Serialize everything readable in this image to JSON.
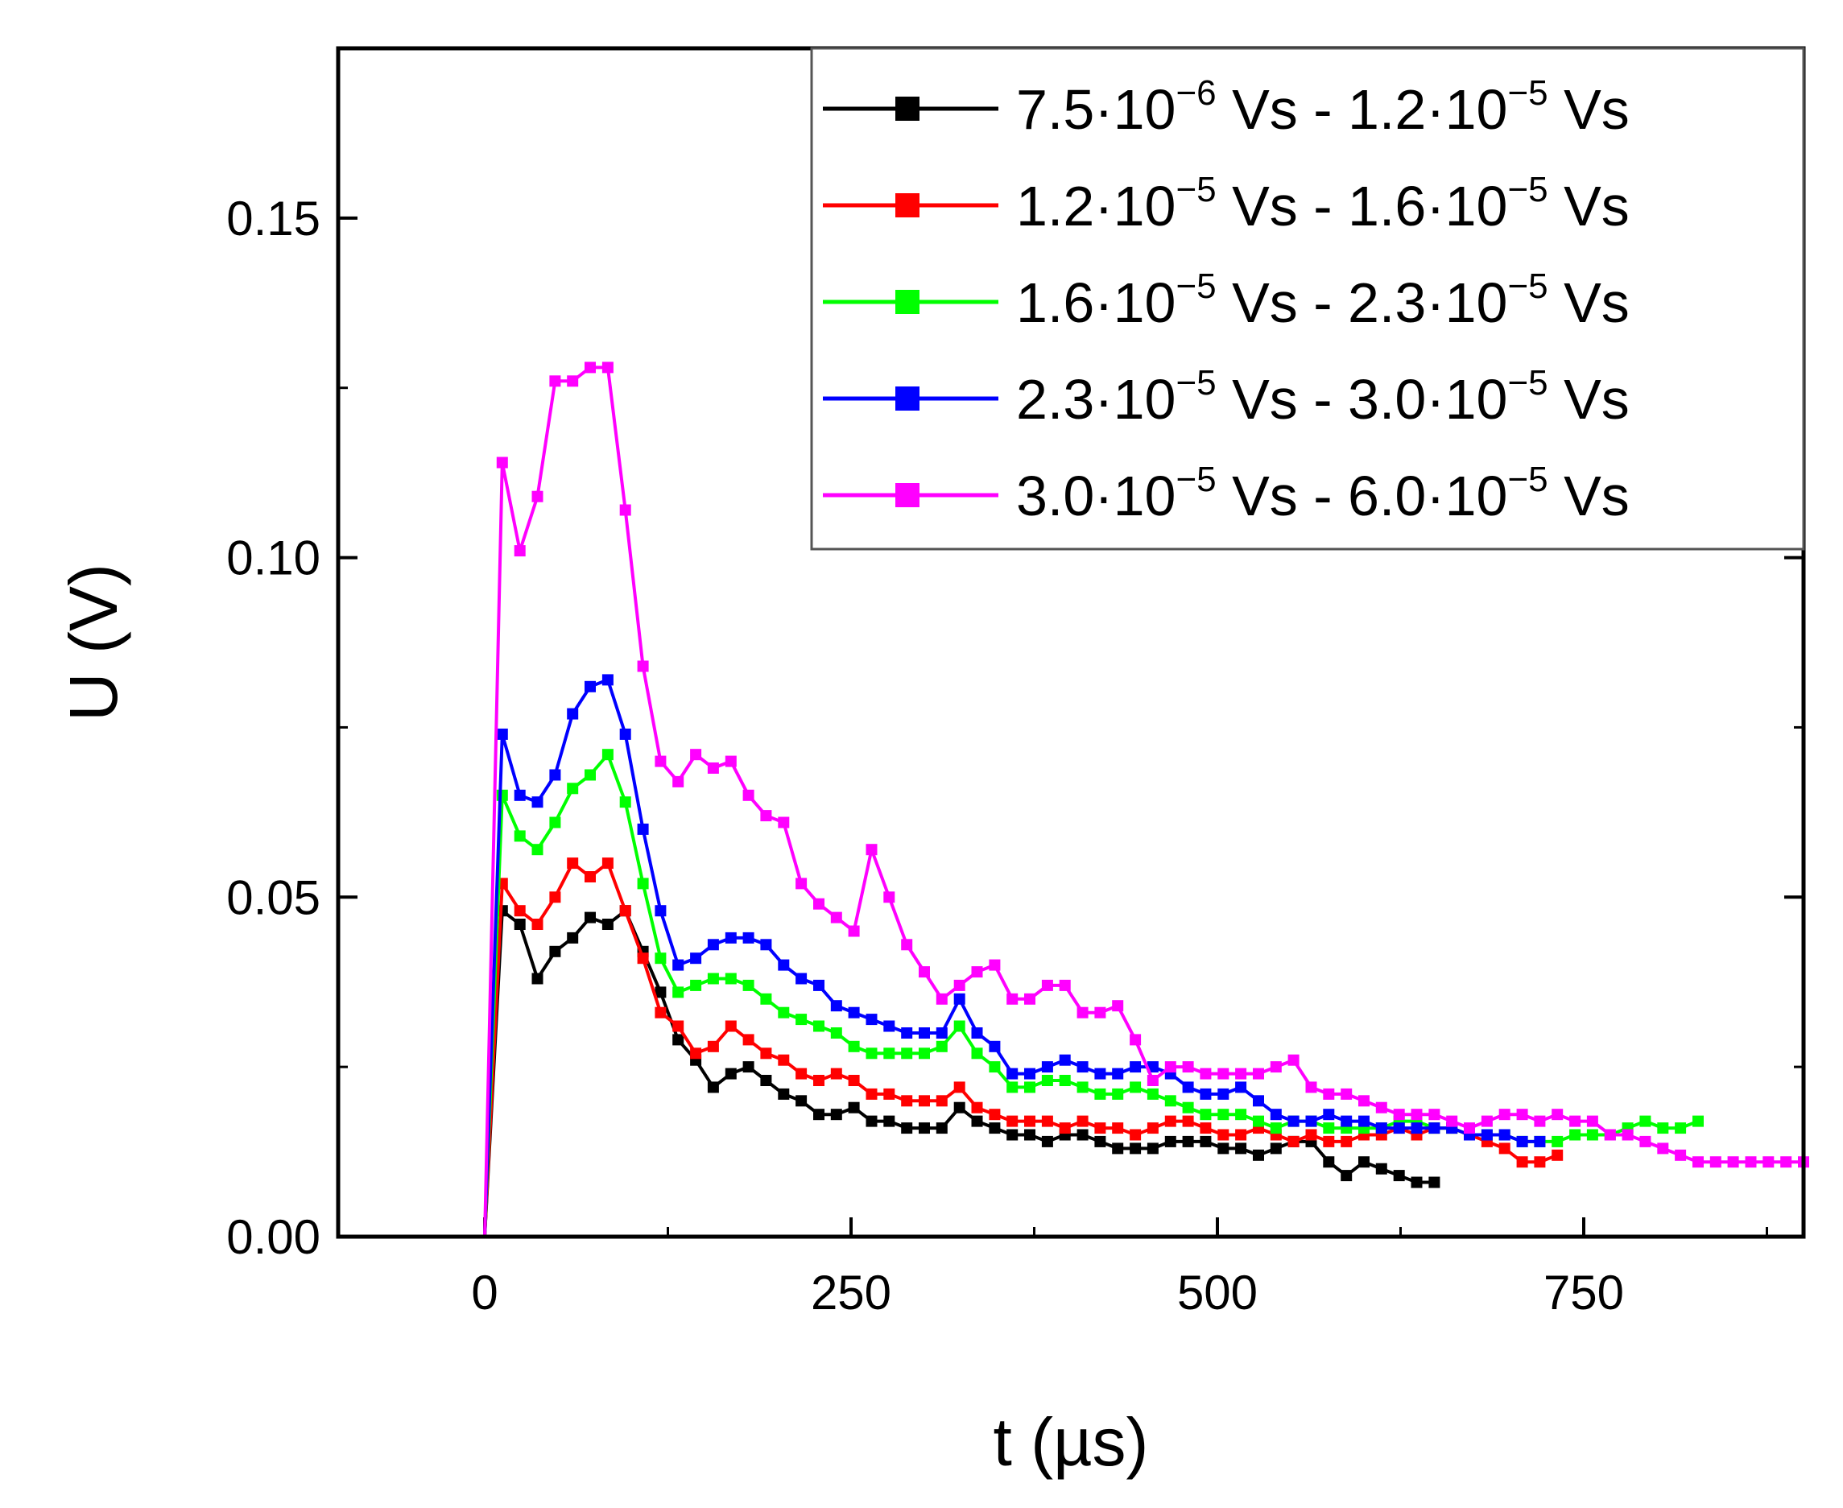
{
  "chart_data": {
    "type": "line",
    "xlabel": "t (µs)",
    "ylabel": "U (V)",
    "xlim": [
      -100,
      900
    ],
    "ylim": [
      0,
      0.175
    ],
    "xticks": [
      0,
      250,
      500,
      750
    ],
    "xtick_labels": [
      "0",
      "250",
      "500",
      "750"
    ],
    "yticks": [
      0,
      0.05,
      0.1,
      0.15
    ],
    "ytick_labels": [
      "0.00",
      "0.05",
      "0.10",
      "0.15"
    ],
    "legend_position": "top-right",
    "series": [
      {
        "name": "7.5·10⁻⁶ Vs - 1.2·10⁻⁵ Vs",
        "label": {
          "a": "7.5·10",
          "ae": "−6",
          "b": " Vs - 1.2·10",
          "be": "−5",
          "c": " Vs"
        },
        "color": "#000000",
        "x": [
          0,
          12,
          24,
          36,
          48,
          60,
          72,
          84,
          96,
          108,
          120,
          132,
          144,
          156,
          168,
          180,
          192,
          204,
          216,
          228,
          240,
          252,
          264,
          276,
          288,
          300,
          312,
          324,
          336,
          348,
          360,
          372,
          384,
          396,
          408,
          420,
          432,
          444,
          456,
          468,
          480,
          492,
          504,
          516,
          528,
          540,
          552,
          564,
          576,
          588,
          600,
          612,
          624,
          636,
          648
        ],
        "y": [
          0,
          0.048,
          0.046,
          0.038,
          0.042,
          0.044,
          0.047,
          0.046,
          0.048,
          0.042,
          0.036,
          0.029,
          0.026,
          0.022,
          0.024,
          0.025,
          0.023,
          0.021,
          0.02,
          0.018,
          0.018,
          0.019,
          0.017,
          0.017,
          0.016,
          0.016,
          0.016,
          0.019,
          0.017,
          0.016,
          0.015,
          0.015,
          0.014,
          0.015,
          0.015,
          0.014,
          0.013,
          0.013,
          0.013,
          0.014,
          0.014,
          0.014,
          0.013,
          0.013,
          0.012,
          0.013,
          0.014,
          0.014,
          0.011,
          0.009,
          0.011,
          0.01,
          0.009,
          0.008,
          0.008
        ]
      },
      {
        "name": "1.2·10⁻⁵ Vs - 1.6·10⁻⁵ Vs",
        "label": {
          "a": "1.2·10",
          "ae": "−5",
          "b": " Vs - 1.6·10",
          "be": "−5",
          "c": " Vs"
        },
        "color": "#ff0000",
        "x": [
          0,
          12,
          24,
          36,
          48,
          60,
          72,
          84,
          96,
          108,
          120,
          132,
          144,
          156,
          168,
          180,
          192,
          204,
          216,
          228,
          240,
          252,
          264,
          276,
          288,
          300,
          312,
          324,
          336,
          348,
          360,
          372,
          384,
          396,
          408,
          420,
          432,
          444,
          456,
          468,
          480,
          492,
          504,
          516,
          528,
          540,
          552,
          564,
          576,
          588,
          600,
          612,
          624,
          636,
          648,
          660,
          672,
          684,
          696,
          708,
          720,
          732
        ],
        "y": [
          0,
          0.052,
          0.048,
          0.046,
          0.05,
          0.055,
          0.053,
          0.055,
          0.048,
          0.041,
          0.033,
          0.031,
          0.027,
          0.028,
          0.031,
          0.029,
          0.027,
          0.026,
          0.024,
          0.023,
          0.024,
          0.023,
          0.021,
          0.021,
          0.02,
          0.02,
          0.02,
          0.022,
          0.019,
          0.018,
          0.017,
          0.017,
          0.017,
          0.016,
          0.017,
          0.016,
          0.016,
          0.015,
          0.016,
          0.017,
          0.017,
          0.016,
          0.015,
          0.015,
          0.016,
          0.015,
          0.014,
          0.015,
          0.014,
          0.014,
          0.015,
          0.015,
          0.016,
          0.015,
          0.016,
          0.016,
          0.015,
          0.014,
          0.013,
          0.011,
          0.011,
          0.012
        ]
      },
      {
        "name": "1.6·10⁻⁵ Vs - 2.3·10⁻⁵ Vs",
        "label": {
          "a": "1.6·10",
          "ae": "−5",
          "b": " Vs - 2.3·10",
          "be": "−5",
          "c": " Vs"
        },
        "color": "#00ff00",
        "x": [
          0,
          12,
          24,
          36,
          48,
          60,
          72,
          84,
          96,
          108,
          120,
          132,
          144,
          156,
          168,
          180,
          192,
          204,
          216,
          228,
          240,
          252,
          264,
          276,
          288,
          300,
          312,
          324,
          336,
          348,
          360,
          372,
          384,
          396,
          408,
          420,
          432,
          444,
          456,
          468,
          480,
          492,
          504,
          516,
          528,
          540,
          552,
          564,
          576,
          588,
          600,
          612,
          624,
          636,
          648,
          660,
          672,
          684,
          696,
          708,
          720,
          732,
          744,
          756,
          768,
          780,
          792,
          804,
          816,
          828
        ],
        "y": [
          0,
          0.065,
          0.059,
          0.057,
          0.061,
          0.066,
          0.068,
          0.071,
          0.064,
          0.052,
          0.041,
          0.036,
          0.037,
          0.038,
          0.038,
          0.037,
          0.035,
          0.033,
          0.032,
          0.031,
          0.03,
          0.028,
          0.027,
          0.027,
          0.027,
          0.027,
          0.028,
          0.031,
          0.027,
          0.025,
          0.022,
          0.022,
          0.023,
          0.023,
          0.022,
          0.021,
          0.021,
          0.022,
          0.021,
          0.02,
          0.019,
          0.018,
          0.018,
          0.018,
          0.017,
          0.016,
          0.017,
          0.017,
          0.016,
          0.016,
          0.016,
          0.016,
          0.017,
          0.017,
          0.016,
          0.016,
          0.015,
          0.015,
          0.015,
          0.014,
          0.014,
          0.014,
          0.015,
          0.015,
          0.015,
          0.016,
          0.017,
          0.016,
          0.016,
          0.017
        ]
      },
      {
        "name": "2.3·10⁻⁵ Vs - 3.0·10⁻⁵ Vs",
        "label": {
          "a": "2.3·10",
          "ae": "−5",
          "b": " Vs - 3.0·10",
          "be": "−5",
          "c": " Vs"
        },
        "color": "#0000ff",
        "x": [
          0,
          12,
          24,
          36,
          48,
          60,
          72,
          84,
          96,
          108,
          120,
          132,
          144,
          156,
          168,
          180,
          192,
          204,
          216,
          228,
          240,
          252,
          264,
          276,
          288,
          300,
          312,
          324,
          336,
          348,
          360,
          372,
          384,
          396,
          408,
          420,
          432,
          444,
          456,
          468,
          480,
          492,
          504,
          516,
          528,
          540,
          552,
          564,
          576,
          588,
          600,
          612,
          624,
          636,
          648,
          660,
          672,
          684,
          696,
          708,
          720
        ],
        "y": [
          0,
          0.074,
          0.065,
          0.064,
          0.068,
          0.077,
          0.081,
          0.082,
          0.074,
          0.06,
          0.048,
          0.04,
          0.041,
          0.043,
          0.044,
          0.044,
          0.043,
          0.04,
          0.038,
          0.037,
          0.034,
          0.033,
          0.032,
          0.031,
          0.03,
          0.03,
          0.03,
          0.035,
          0.03,
          0.028,
          0.024,
          0.024,
          0.025,
          0.026,
          0.025,
          0.024,
          0.024,
          0.025,
          0.025,
          0.024,
          0.022,
          0.021,
          0.021,
          0.022,
          0.02,
          0.018,
          0.017,
          0.017,
          0.018,
          0.017,
          0.017,
          0.016,
          0.016,
          0.016,
          0.016,
          0.016,
          0.015,
          0.015,
          0.015,
          0.014,
          0.014
        ]
      },
      {
        "name": "3.0·10⁻⁵ Vs - 6.0·10⁻⁵ Vs",
        "label": {
          "a": "3.0·10",
          "ae": "−5",
          "b": " Vs - 6.0·10",
          "be": "−5",
          "c": " Vs"
        },
        "color": "#ff00ff",
        "x": [
          0,
          12,
          24,
          36,
          48,
          60,
          72,
          84,
          96,
          108,
          120,
          132,
          144,
          156,
          168,
          180,
          192,
          204,
          216,
          228,
          240,
          252,
          264,
          276,
          288,
          300,
          312,
          324,
          336,
          348,
          360,
          372,
          384,
          396,
          408,
          420,
          432,
          444,
          456,
          468,
          480,
          492,
          504,
          516,
          528,
          540,
          552,
          564,
          576,
          588,
          600,
          612,
          624,
          636,
          648,
          660,
          672,
          684,
          696,
          708,
          720,
          732,
          744,
          756,
          768,
          780,
          792,
          804,
          816,
          828,
          840,
          852,
          864,
          876,
          888,
          900
        ],
        "y": [
          0,
          0.114,
          0.101,
          0.109,
          0.126,
          0.126,
          0.128,
          0.128,
          0.107,
          0.084,
          0.07,
          0.067,
          0.071,
          0.069,
          0.07,
          0.065,
          0.062,
          0.061,
          0.052,
          0.049,
          0.047,
          0.045,
          0.057,
          0.05,
          0.043,
          0.039,
          0.035,
          0.037,
          0.039,
          0.04,
          0.035,
          0.035,
          0.037,
          0.037,
          0.033,
          0.033,
          0.034,
          0.029,
          0.023,
          0.025,
          0.025,
          0.024,
          0.024,
          0.024,
          0.024,
          0.025,
          0.026,
          0.022,
          0.021,
          0.021,
          0.02,
          0.019,
          0.018,
          0.018,
          0.018,
          0.017,
          0.016,
          0.017,
          0.018,
          0.018,
          0.017,
          0.018,
          0.017,
          0.017,
          0.015,
          0.015,
          0.014,
          0.013,
          0.012,
          0.011,
          0.011,
          0.011,
          0.011,
          0.011,
          0.011,
          0.011
        ]
      }
    ]
  }
}
